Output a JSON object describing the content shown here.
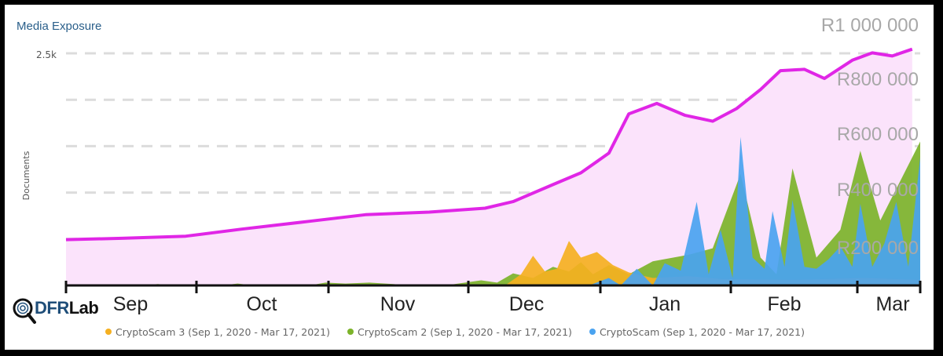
{
  "chart_data": {
    "type": "area",
    "title": "Media Exposure",
    "ylabel": "Documents",
    "y_ticks_left": [
      "2.5k"
    ],
    "y_ticks_right": [
      "R1 000 000",
      "R800 000",
      "R600 000",
      "R400 000",
      "R200 000"
    ],
    "x_ticks": [
      "Sep",
      "Oct",
      "Nov",
      "Dec",
      "Jan",
      "Feb",
      "Mar"
    ],
    "legend": [
      {
        "name": "CryptoScam 3 (Sep 1, 2020 - Mar 17, 2021)",
        "color": "#f5b021"
      },
      {
        "name": "CryptoScam 2 (Sep 1, 2020 - Mar 17, 2021)",
        "color": "#7cb32a"
      },
      {
        "name": "CryptoScam (Sep 1, 2020 - Mar 17, 2021)",
        "color": "#4aa3f0"
      }
    ],
    "ylim_documents": [
      0,
      2500
    ],
    "ylim_rand": [
      0,
      1000000
    ],
    "value_series": {
      "name": "",
      "color": "#e026e6",
      "points": [
        [
          "2020-09-01",
          175000
        ],
        [
          "2020-09-15",
          180000
        ],
        [
          "2020-10-01",
          188000
        ],
        [
          "2020-10-15",
          215000
        ],
        [
          "2020-11-01",
          245000
        ],
        [
          "2020-11-15",
          270000
        ],
        [
          "2020-12-01",
          280000
        ],
        [
          "2020-12-15",
          295000
        ],
        [
          "2020-12-22",
          320000
        ],
        [
          "2021-01-01",
          385000
        ],
        [
          "2021-01-08",
          430000
        ],
        [
          "2021-01-15",
          505000
        ],
        [
          "2021-01-20",
          655000
        ],
        [
          "2021-01-27",
          695000
        ],
        [
          "2021-02-03",
          650000
        ],
        [
          "2021-02-10",
          627000
        ],
        [
          "2021-02-16",
          675000
        ],
        [
          "2021-02-22",
          748000
        ],
        [
          "2021-02-27",
          820000
        ],
        [
          "2021-03-05",
          825000
        ],
        [
          "2021-03-10",
          790000
        ],
        [
          "2021-03-17",
          860000
        ],
        [
          "2021-03-22",
          888000
        ],
        [
          "2021-03-27",
          876000
        ],
        [
          "2021-04-01",
          902000
        ]
      ]
    },
    "document_series": [
      {
        "name": "CryptoScam",
        "points": [
          [
            "2021-01-10",
            0
          ],
          [
            "2021-01-15",
            80
          ],
          [
            "2021-01-18",
            0
          ],
          [
            "2021-01-22",
            180
          ],
          [
            "2021-01-26",
            0
          ],
          [
            "2021-01-29",
            240
          ],
          [
            "2021-02-02",
            160
          ],
          [
            "2021-02-06",
            900
          ],
          [
            "2021-02-09",
            120
          ],
          [
            "2021-02-12",
            600
          ],
          [
            "2021-02-15",
            80
          ],
          [
            "2021-02-17",
            1600
          ],
          [
            "2021-02-20",
            300
          ],
          [
            "2021-02-23",
            180
          ],
          [
            "2021-02-25",
            800
          ],
          [
            "2021-02-28",
            200
          ],
          [
            "2021-03-02",
            920
          ],
          [
            "2021-03-05",
            200
          ],
          [
            "2021-03-08",
            180
          ],
          [
            "2021-03-11",
            280
          ],
          [
            "2021-03-14",
            420
          ],
          [
            "2021-03-17",
            200
          ],
          [
            "2021-03-19",
            880
          ],
          [
            "2021-03-22",
            200
          ],
          [
            "2021-03-25",
            450
          ],
          [
            "2021-03-28",
            900
          ],
          [
            "2021-03-31",
            200
          ],
          [
            "2021-04-03",
            1380
          ]
        ]
      },
      {
        "name": "CryptoScam 2",
        "points": [
          [
            "2020-09-20",
            0
          ],
          [
            "2020-09-24",
            15
          ],
          [
            "2020-09-28",
            0
          ],
          [
            "2020-10-10",
            0
          ],
          [
            "2020-10-14",
            20
          ],
          [
            "2020-10-18",
            0
          ],
          [
            "2020-11-01",
            0
          ],
          [
            "2020-11-05",
            30
          ],
          [
            "2020-11-10",
            20
          ],
          [
            "2020-11-16",
            30
          ],
          [
            "2020-11-22",
            15
          ],
          [
            "2020-11-26",
            0
          ],
          [
            "2020-12-05",
            0
          ],
          [
            "2020-12-10",
            30
          ],
          [
            "2020-12-14",
            55
          ],
          [
            "2020-12-18",
            30
          ],
          [
            "2020-12-22",
            130
          ],
          [
            "2020-12-27",
            80
          ],
          [
            "2021-01-01",
            200
          ],
          [
            "2021-01-05",
            150
          ],
          [
            "2021-01-08",
            250
          ],
          [
            "2021-01-11",
            120
          ],
          [
            "2021-01-15",
            220
          ],
          [
            "2021-01-20",
            120
          ],
          [
            "2021-01-26",
            260
          ],
          [
            "2021-02-04",
            330
          ],
          [
            "2021-02-10",
            400
          ],
          [
            "2021-02-17",
            1200
          ],
          [
            "2021-02-22",
            300
          ],
          [
            "2021-02-26",
            120
          ],
          [
            "2021-03-02",
            1260
          ],
          [
            "2021-03-08",
            300
          ],
          [
            "2021-03-14",
            600
          ],
          [
            "2021-03-19",
            1450
          ],
          [
            "2021-03-24",
            700
          ],
          [
            "2021-04-03",
            1550
          ]
        ]
      },
      {
        "name": "CryptoScam 3",
        "points": [
          [
            "2020-12-20",
            0
          ],
          [
            "2020-12-24",
            120
          ],
          [
            "2020-12-27",
            320
          ],
          [
            "2020-12-30",
            150
          ],
          [
            "2021-01-02",
            180
          ],
          [
            "2021-01-05",
            480
          ],
          [
            "2021-01-08",
            300
          ],
          [
            "2021-01-12",
            360
          ],
          [
            "2021-01-16",
            220
          ],
          [
            "2021-01-20",
            140
          ],
          [
            "2021-01-26",
            80
          ],
          [
            "2021-02-04",
            100
          ],
          [
            "2021-02-12",
            70
          ],
          [
            "2021-03-02",
            60
          ],
          [
            "2021-03-20",
            80
          ],
          [
            "2021-04-03",
            60
          ]
        ]
      }
    ]
  },
  "brand": {
    "logo_prefix": "DFR",
    "logo_suffix": "Lab"
  }
}
